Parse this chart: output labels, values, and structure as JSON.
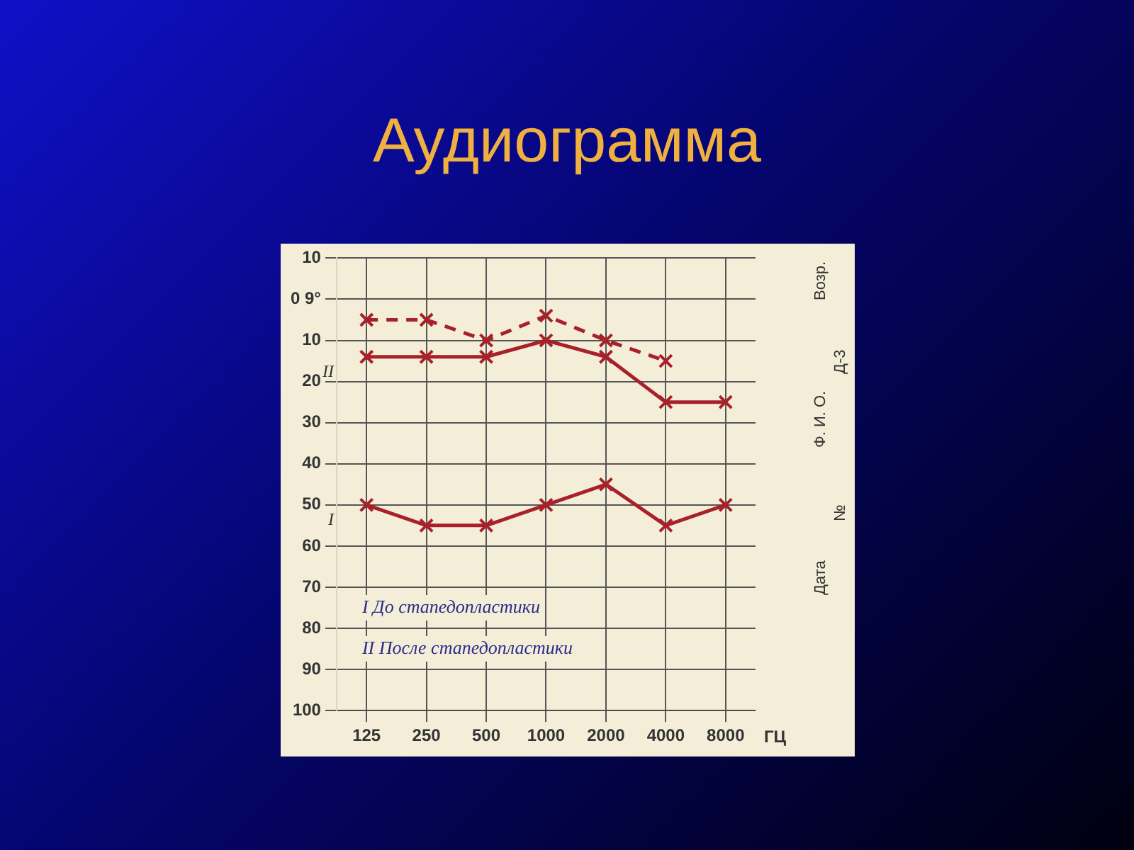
{
  "chart_data": {
    "type": "line",
    "title": "Аудиограмма",
    "xlabel": "ГЦ",
    "categories": [
      "125",
      "250",
      "500",
      "1000",
      "2000",
      "4000",
      "8000"
    ],
    "series": [
      {
        "values": [
          5,
          5,
          10,
          4,
          10,
          15,
          null
        ],
        "color": "#a8202a",
        "line_style": "dashed"
      },
      {
        "name": "II",
        "values": [
          14,
          14,
          14,
          10,
          14,
          25,
          25
        ],
        "color": "#a8202a",
        "line_style": "solid"
      },
      {
        "name": "I",
        "values": [
          50,
          55,
          55,
          50,
          45,
          55,
          50
        ],
        "color": "#a8202a",
        "line_style": "solid"
      }
    ],
    "ylim": [
      100,
      -10
    ],
    "yticks": [
      {
        "value": -10,
        "label": "10"
      },
      {
        "value": 0,
        "label": "0 9°"
      },
      10,
      20,
      30,
      40,
      50,
      60,
      70,
      80,
      90,
      100
    ],
    "grid": true,
    "legend": false,
    "marker": "cross",
    "annotations": [
      "I До стапедопластики",
      "II После стапедопластики",
      "Возр.",
      "Д-3",
      "Ф. И. О.",
      "№",
      "Дата"
    ]
  }
}
